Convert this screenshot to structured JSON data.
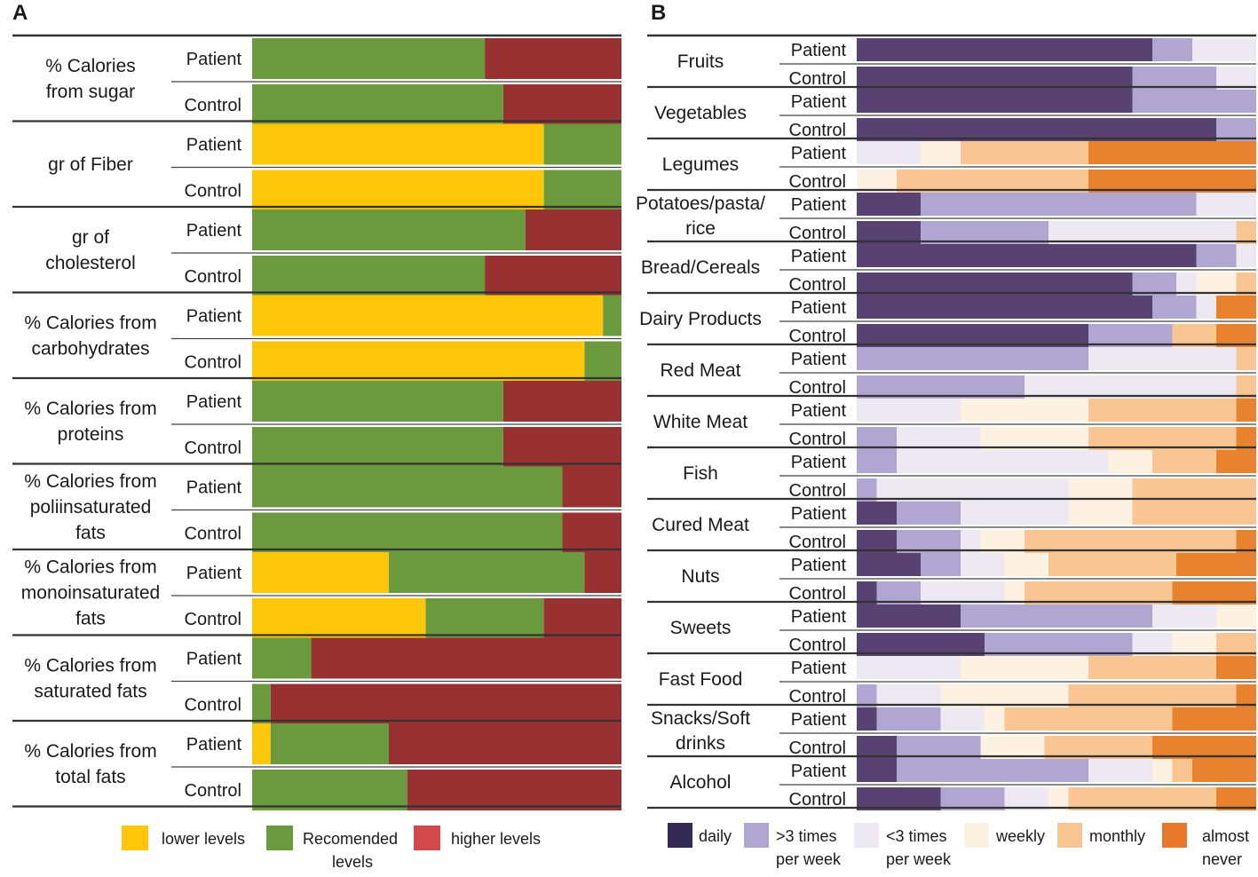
{
  "chart_data": [
    {
      "panel": "A",
      "type": "bar",
      "stacked": true,
      "orientation": "horizontal",
      "value_unit": "percent",
      "segment_order": [
        "lower levels",
        "Recomended levels",
        "higher levels"
      ],
      "groups": [
        {
          "label": [
            "% Calories",
            "from sugar"
          ],
          "rows": [
            {
              "label": "Patient",
              "values": [
                0,
                63,
                37
              ]
            },
            {
              "label": "Control",
              "values": [
                0,
                68,
                32
              ]
            }
          ]
        },
        {
          "label": [
            "gr of Fiber"
          ],
          "rows": [
            {
              "label": "Patient",
              "values": [
                79,
                21,
                0
              ]
            },
            {
              "label": "Control",
              "values": [
                79,
                21,
                0
              ]
            }
          ]
        },
        {
          "label": [
            "gr of",
            "cholesterol"
          ],
          "rows": [
            {
              "label": "Patient",
              "values": [
                0,
                74,
                26
              ]
            },
            {
              "label": "Control",
              "values": [
                0,
                63,
                37
              ]
            }
          ]
        },
        {
          "label": [
            "% Calories from",
            "carbohydrates"
          ],
          "rows": [
            {
              "label": "Patient",
              "values": [
                95,
                5,
                0
              ]
            },
            {
              "label": "Control",
              "values": [
                90,
                10,
                0
              ]
            }
          ]
        },
        {
          "label": [
            "% Calories from",
            "proteins"
          ],
          "rows": [
            {
              "label": "Patient",
              "values": [
                0,
                68,
                32
              ]
            },
            {
              "label": "Control",
              "values": [
                0,
                68,
                32
              ]
            }
          ]
        },
        {
          "label": [
            "% Calories from",
            "poliinsaturated",
            "fats"
          ],
          "rows": [
            {
              "label": "Patient",
              "values": [
                0,
                84,
                16
              ]
            },
            {
              "label": "Control",
              "values": [
                0,
                84,
                16
              ]
            }
          ]
        },
        {
          "label": [
            "% Calories from",
            "monoinsaturated",
            "fats"
          ],
          "rows": [
            {
              "label": "Patient",
              "values": [
                37,
                53,
                10
              ]
            },
            {
              "label": "Control",
              "values": [
                47,
                32,
                21
              ]
            }
          ]
        },
        {
          "label": [
            "% Calories from",
            "saturated fats"
          ],
          "rows": [
            {
              "label": "Patient",
              "values": [
                0,
                16,
                84
              ]
            },
            {
              "label": "Control",
              "values": [
                0,
                5,
                95
              ]
            }
          ]
        },
        {
          "label": [
            "% Calories from",
            "total fats"
          ],
          "rows": [
            {
              "label": "Patient",
              "values": [
                5,
                32,
                63
              ]
            },
            {
              "label": "Control",
              "values": [
                0,
                42,
                58
              ]
            }
          ]
        }
      ],
      "legend": [
        {
          "name": "lower levels",
          "label_lines": [
            "lower levels"
          ],
          "color": "#FDC60A"
        },
        {
          "name": "Recomended levels",
          "label_lines": [
            "Recomended",
            "levels"
          ],
          "color": "#6B9A3E"
        },
        {
          "name": "higher levels",
          "label_lines": [
            "higher levels"
          ],
          "color": "#D2494C"
        }
      ],
      "bar_colors": [
        "#FDC60A",
        "#6B9A3E",
        "#983131"
      ]
    },
    {
      "panel": "B",
      "type": "bar",
      "stacked": true,
      "orientation": "horizontal",
      "value_unit": "percent",
      "segment_order": [
        "daily",
        ">3 times per week",
        "<3 times per week",
        "weekly",
        "monthly",
        "almost never"
      ],
      "groups": [
        {
          "label": [
            "Fruits"
          ],
          "rows": [
            {
              "label": "Patient",
              "values": [
                74,
                10,
                16,
                0,
                0,
                0
              ]
            },
            {
              "label": "Control",
              "values": [
                69,
                21,
                10,
                0,
                0,
                0
              ]
            }
          ]
        },
        {
          "label": [
            "Vegetables"
          ],
          "rows": [
            {
              "label": "Patient",
              "values": [
                69,
                31,
                0,
                0,
                0,
                0
              ]
            },
            {
              "label": "Control",
              "values": [
                90,
                10,
                0,
                0,
                0,
                0
              ]
            }
          ]
        },
        {
          "label": [
            "Legumes"
          ],
          "rows": [
            {
              "label": "Patient",
              "values": [
                0,
                0,
                16,
                10,
                32,
                42
              ]
            },
            {
              "label": "Control",
              "values": [
                0,
                0,
                0,
                10,
                48,
                42
              ]
            }
          ]
        },
        {
          "label": [
            "Potatoes/pasta/",
            "rice"
          ],
          "rows": [
            {
              "label": "Patient",
              "values": [
                16,
                69,
                15,
                0,
                0,
                0
              ]
            },
            {
              "label": "Control",
              "values": [
                16,
                32,
                47,
                0,
                5,
                0
              ]
            }
          ]
        },
        {
          "label": [
            "Bread/Cereals"
          ],
          "rows": [
            {
              "label": "Patient",
              "values": [
                85,
                10,
                5,
                0,
                0,
                0
              ]
            },
            {
              "label": "Control",
              "values": [
                69,
                11,
                5,
                10,
                5,
                0
              ]
            }
          ]
        },
        {
          "label": [
            "Dairy Products"
          ],
          "rows": [
            {
              "label": "Patient",
              "values": [
                74,
                11,
                5,
                0,
                0,
                10
              ]
            },
            {
              "label": "Control",
              "values": [
                58,
                21,
                0,
                0,
                11,
                10
              ]
            }
          ]
        },
        {
          "label": [
            "Red Meat"
          ],
          "rows": [
            {
              "label": "Patient",
              "values": [
                0,
                58,
                37,
                0,
                5,
                0
              ]
            },
            {
              "label": "Control",
              "values": [
                0,
                42,
                53,
                0,
                5,
                0
              ]
            }
          ]
        },
        {
          "label": [
            "White Meat"
          ],
          "rows": [
            {
              "label": "Patient",
              "values": [
                0,
                0,
                26,
                32,
                37,
                5
              ]
            },
            {
              "label": "Control",
              "values": [
                0,
                10,
                21,
                27,
                37,
                5
              ]
            }
          ]
        },
        {
          "label": [
            "Fish"
          ],
          "rows": [
            {
              "label": "Patient",
              "values": [
                0,
                10,
                53,
                11,
                16,
                10
              ]
            },
            {
              "label": "Control",
              "values": [
                0,
                5,
                48,
                16,
                31,
                0
              ]
            }
          ]
        },
        {
          "label": [
            "Cured Meat"
          ],
          "rows": [
            {
              "label": "Patient",
              "values": [
                10,
                16,
                27,
                16,
                31,
                0
              ]
            },
            {
              "label": "Control",
              "values": [
                10,
                16,
                5,
                11,
                53,
                5
              ]
            }
          ]
        },
        {
          "label": [
            "Nuts"
          ],
          "rows": [
            {
              "label": "Patient",
              "values": [
                16,
                10,
                11,
                11,
                32,
                20
              ]
            },
            {
              "label": "Control",
              "values": [
                5,
                11,
                21,
                5,
                37,
                21
              ]
            }
          ]
        },
        {
          "label": [
            "Sweets"
          ],
          "rows": [
            {
              "label": "Patient",
              "values": [
                26,
                48,
                16,
                10,
                0,
                0
              ]
            },
            {
              "label": "Control",
              "values": [
                32,
                37,
                10,
                11,
                10,
                0
              ]
            }
          ]
        },
        {
          "label": [
            "Fast Food"
          ],
          "rows": [
            {
              "label": "Patient",
              "values": [
                0,
                0,
                26,
                32,
                32,
                10
              ]
            },
            {
              "label": "Control",
              "values": [
                0,
                5,
                16,
                32,
                42,
                5
              ]
            }
          ]
        },
        {
          "label": [
            "Snacks/Soft",
            "drinks"
          ],
          "rows": [
            {
              "label": "Patient",
              "values": [
                5,
                16,
                11,
                5,
                42,
                21
              ]
            },
            {
              "label": "Control",
              "values": [
                10,
                21,
                0,
                16,
                27,
                26
              ]
            }
          ]
        },
        {
          "label": [
            "Alcohol"
          ],
          "rows": [
            {
              "label": "Patient",
              "values": [
                10,
                48,
                16,
                5,
                5,
                16
              ]
            },
            {
              "label": "Control",
              "values": [
                21,
                16,
                11,
                5,
                37,
                10
              ]
            }
          ]
        }
      ],
      "legend": [
        {
          "name": "daily",
          "label_lines": [
            "daily"
          ],
          "color": "#332A55"
        },
        {
          "name": ">3 times per week",
          "label_lines": [
            ">3 times",
            "per week"
          ],
          "color": "#AFA6D2"
        },
        {
          "name": "<3 times per week",
          "label_lines": [
            "<3 times",
            "per week"
          ],
          "color": "#ECE9F2"
        },
        {
          "name": "weekly",
          "label_lines": [
            "weekly"
          ],
          "color": "#FDF1E2"
        },
        {
          "name": "monthly",
          "label_lines": [
            "monthly"
          ],
          "color": "#F8C593"
        },
        {
          "name": "almost never",
          "label_lines": [
            "almost",
            "never"
          ],
          "color": "#E8782B"
        }
      ],
      "bar_colors": [
        "#574272",
        "#AFA6D2",
        "#ECE9F2",
        "#FDF1E2",
        "#F8C593",
        "#E8822F"
      ]
    }
  ]
}
